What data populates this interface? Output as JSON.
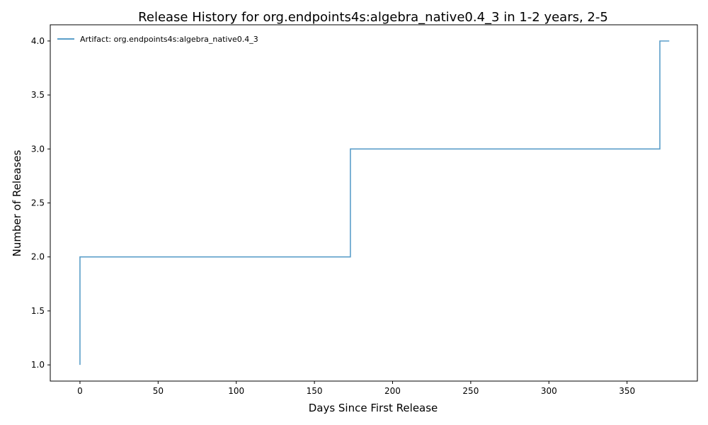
{
  "chart_data": {
    "type": "line",
    "step": "post",
    "title": "Release History for org.endpoints4s:algebra_native0.4_3 in 1-2 years, 2-5",
    "xlabel": "Days Since First Release",
    "ylabel": "Number of Releases",
    "xlim": [
      -19,
      395
    ],
    "ylim": [
      0.85,
      4.15
    ],
    "x_ticks": [
      0,
      50,
      100,
      150,
      200,
      250,
      300,
      350
    ],
    "x_tick_labels": [
      "0",
      "50",
      "100",
      "150",
      "200",
      "250",
      "300",
      "350"
    ],
    "y_ticks": [
      1.0,
      1.5,
      2.0,
      2.5,
      3.0,
      3.5,
      4.0
    ],
    "y_tick_labels": [
      "1.0",
      "1.5",
      "2.0",
      "2.5",
      "3.0",
      "3.5",
      "4.0"
    ],
    "grid": false,
    "legend_position": "top-left",
    "series": [
      {
        "name": "Artifact: org.endpoints4s:algebra_native0.4_3",
        "color": "#5b9ec9",
        "x": [
          0,
          0,
          173,
          371,
          377
        ],
        "y": [
          1,
          2,
          3,
          4,
          4
        ]
      }
    ]
  }
}
